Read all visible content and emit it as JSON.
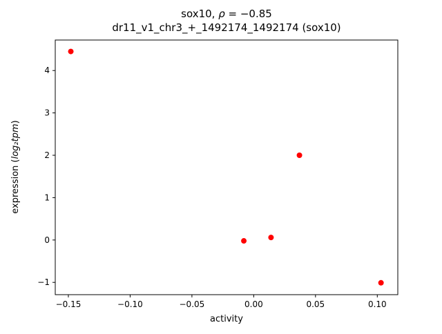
{
  "title": {
    "line1_prefix": "sox10, ",
    "line1_rho": "ρ",
    "line1_rest": " = −0.85",
    "line2": "dr11_v1_chr3_+_1492174_1492174 (sox10)"
  },
  "chart_data": {
    "type": "scatter",
    "title": "sox10, ρ = −0.85\ndr11_v1_chr3_+_1492174_1492174 (sox10)",
    "xlabel": "activity",
    "ylabel": "expression (log₂tpm)",
    "ylabel_parts": {
      "prefix": "expression (",
      "math": "log₂tpm",
      "suffix": ")"
    },
    "x": [
      -0.148,
      0.037,
      -0.008,
      0.014,
      0.103
    ],
    "y": [
      4.45,
      2.0,
      -0.02,
      0.06,
      -1.01
    ],
    "marker_color": "#ff0000",
    "marker_radius": 4,
    "xlim": [
      -0.1606,
      0.1166
    ],
    "ylim": [
      -1.29,
      4.72
    ],
    "xticks": [
      -0.15,
      -0.1,
      -0.05,
      0.0,
      0.05,
      0.1
    ],
    "xtick_labels": [
      "−0.15",
      "−0.10",
      "−0.05",
      "0.00",
      "0.05",
      "0.10"
    ],
    "yticks": [
      -1,
      0,
      1,
      2,
      3,
      4
    ],
    "ytick_labels": [
      "−1",
      "0",
      "1",
      "2",
      "3",
      "4"
    ],
    "grid": false,
    "legend": null
  }
}
